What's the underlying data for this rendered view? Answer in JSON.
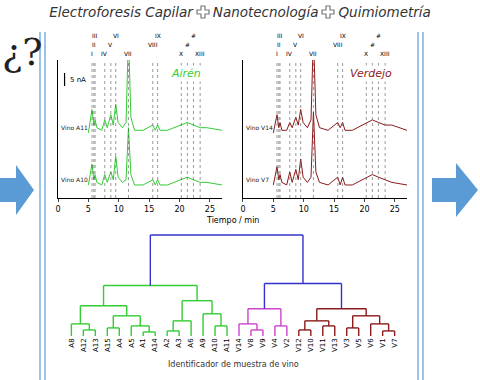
{
  "header": {
    "items": [
      "Electroforesis Capilar",
      "Nanotecnología",
      "Quimiometría"
    ]
  },
  "question": "¿?",
  "chart_data": [
    {
      "type": "line",
      "xlabel": "Tiempo / min",
      "xlim": [
        0,
        27
      ],
      "xticks": [
        0,
        5,
        10,
        15,
        20,
        25
      ],
      "ylim": [
        -3,
        50
      ],
      "tick_labels": "x",
      "scale_bar": {
        "value": 5,
        "label": "5 nA"
      },
      "panels": [
        {
          "title": "Airén",
          "color": "#33cc33",
          "peaks": [
            {
              "label": "I",
              "x": 5.6
            },
            {
              "label": "II",
              "x": 5.9
            },
            {
              "label": "III",
              "x": 6.1
            },
            {
              "label": "IV",
              "x": 7.7
            },
            {
              "label": "V",
              "x": 8.7
            },
            {
              "label": "VI",
              "x": 9.5
            },
            {
              "label": "VII",
              "x": 11.6
            },
            {
              "label": "VIII",
              "x": 15.6
            },
            {
              "label": "IX",
              "x": 16.4
            },
            {
              "label": "X",
              "x": 20.3
            },
            {
              "label": "#",
              "x": 21.3
            },
            {
              "label": "#",
              "x": 22.3
            },
            {
              "label": "XIII",
              "x": 23.4
            }
          ],
          "series": [
            {
              "name": "Vino A11",
              "x": [
                5.0,
                5.6,
                5.9,
                6.1,
                6.4,
                7.2,
                7.7,
                8.1,
                8.7,
                9.1,
                9.5,
                9.9,
                10.6,
                11.2,
                11.6,
                12.0,
                12.6,
                14.0,
                15.6,
                16.0,
                16.4,
                16.8,
                18.0,
                20.3,
                21.3,
                22.3,
                23.4,
                24.5,
                27.0
              ],
              "values": [
                22,
                31,
                25,
                27,
                24,
                23,
                27,
                24,
                29,
                25,
                33,
                26,
                24,
                26,
                60,
                28,
                23,
                23,
                25,
                23,
                25,
                23,
                23,
                25,
                26,
                25,
                24,
                24,
                23
              ]
            },
            {
              "name": "Vino A10",
              "x": [
                5.0,
                5.6,
                5.9,
                6.1,
                6.4,
                7.2,
                7.7,
                8.1,
                8.7,
                9.1,
                9.5,
                9.9,
                10.6,
                11.2,
                11.6,
                12.0,
                12.6,
                14.0,
                15.6,
                16.0,
                16.4,
                16.8,
                18.0,
                20.3,
                21.3,
                22.3,
                23.4,
                24.5,
                27.0
              ],
              "values": [
                2,
                10,
                4,
                6,
                3,
                2,
                6,
                3,
                7,
                4,
                13,
                5,
                3,
                4,
                24,
                6,
                2,
                2,
                4,
                2,
                4,
                2,
                2,
                4,
                5,
                4,
                3,
                3,
                2
              ]
            }
          ]
        },
        {
          "title": "Verdejo",
          "color": "#8b1a1a",
          "peaks": [
            {
              "label": "I",
              "x": 5.6
            },
            {
              "label": "II",
              "x": 5.9
            },
            {
              "label": "III",
              "x": 6.1
            },
            {
              "label": "IV",
              "x": 7.7
            },
            {
              "label": "V",
              "x": 8.7
            },
            {
              "label": "VI",
              "x": 9.5
            },
            {
              "label": "VII",
              "x": 11.6
            },
            {
              "label": "VIII",
              "x": 15.6
            },
            {
              "label": "IX",
              "x": 16.4
            },
            {
              "label": "X",
              "x": 20.3
            },
            {
              "label": "#",
              "x": 21.3
            },
            {
              "label": "#",
              "x": 22.3
            },
            {
              "label": "XIII",
              "x": 23.4
            }
          ],
          "series": [
            {
              "name": "Vino V14",
              "x": [
                5.0,
                5.6,
                5.9,
                6.1,
                6.4,
                7.2,
                7.7,
                8.1,
                8.7,
                9.1,
                9.5,
                9.9,
                10.6,
                11.2,
                11.6,
                12.0,
                12.6,
                14.0,
                15.6,
                16.0,
                16.4,
                16.8,
                18.0,
                20.3,
                21.3,
                22.3,
                23.4,
                24.5,
                27.0
              ],
              "values": [
                22,
                29,
                24,
                26,
                23,
                23,
                26,
                24,
                28,
                25,
                31,
                26,
                24,
                27,
                60,
                29,
                24,
                23,
                26,
                24,
                26,
                23,
                23,
                26,
                27,
                26,
                25,
                25,
                23
              ]
            },
            {
              "name": "Vino V7",
              "x": [
                5.0,
                5.6,
                5.9,
                6.1,
                6.4,
                7.2,
                7.7,
                8.1,
                8.7,
                9.1,
                9.5,
                9.9,
                10.6,
                11.2,
                11.6,
                12.0,
                12.6,
                14.0,
                15.6,
                16.0,
                16.4,
                16.8,
                18.0,
                20.3,
                21.3,
                22.3,
                23.4,
                24.5,
                27.0
              ],
              "values": [
                2,
                9,
                4,
                6,
                3,
                2,
                7,
                3,
                8,
                4,
                12,
                5,
                3,
                5,
                30,
                7,
                3,
                2,
                5,
                2,
                5,
                2,
                2,
                5,
                6,
                5,
                4,
                3,
                2
              ]
            }
          ]
        }
      ]
    },
    {
      "type": "dendrogram",
      "xlabel": "Identificador de muestra de vino",
      "ylim": [
        0,
        1.05
      ],
      "tick_labels": "x",
      "tree": {
        "height": 1.0,
        "color": "#3333cc",
        "children": [
          {
            "height": 0.5,
            "color": "#33cc33",
            "children": [
              {
                "height": 0.3,
                "children": [
                  {
                    "height": 0.12,
                    "children": [
                      "A8",
                      {
                        "height": 0.06,
                        "children": [
                          "A12",
                          "A13"
                        ]
                      }
                    ]
                  },
                  {
                    "height": 0.2,
                    "children": [
                      {
                        "height": 0.08,
                        "children": [
                          "A15",
                          "A4"
                        ]
                      },
                      {
                        "height": 0.1,
                        "children": [
                          "A5",
                          {
                            "height": 0.04,
                            "children": [
                              "A1",
                              "A14"
                            ]
                          }
                        ]
                      }
                    ]
                  }
                ]
              },
              {
                "height": 0.35,
                "children": [
                  {
                    "height": 0.15,
                    "children": [
                      {
                        "height": 0.05,
                        "children": [
                          "A2",
                          "A3"
                        ]
                      },
                      "A6"
                    ]
                  },
                  {
                    "height": 0.22,
                    "children": [
                      "A9",
                      {
                        "height": 0.1,
                        "children": [
                          "A10",
                          "A11"
                        ]
                      }
                    ]
                  }
                ]
              }
            ]
          },
          {
            "height": 0.52,
            "color": "#3333cc",
            "children": [
              {
                "height": 0.27,
                "color": "#cc44cc",
                "children": [
                  {
                    "height": 0.12,
                    "children": [
                      "V14",
                      {
                        "height": 0.06,
                        "children": [
                          "V8",
                          "V9"
                        ]
                      }
                    ]
                  },
                  {
                    "height": 0.1,
                    "children": [
                      "V4",
                      "V2"
                    ]
                  }
                ]
              },
              {
                "height": 0.27,
                "color": "#8b1a1a",
                "children": [
                  {
                    "height": 0.15,
                    "children": [
                      {
                        "height": 0.06,
                        "children": [
                          "V12",
                          "V10"
                        ]
                      },
                      {
                        "height": 0.1,
                        "children": [
                          "V11",
                          "V13"
                        ]
                      }
                    ]
                  },
                  {
                    "height": 0.2,
                    "children": [
                      {
                        "height": 0.08,
                        "children": [
                          "V3",
                          "V5"
                        ]
                      },
                      {
                        "height": 0.12,
                        "children": [
                          "V6",
                          {
                            "height": 0.05,
                            "children": [
                              "V1",
                              "V7"
                            ]
                          }
                        ]
                      }
                    ]
                  }
                ]
              }
            ]
          }
        ]
      }
    }
  ]
}
